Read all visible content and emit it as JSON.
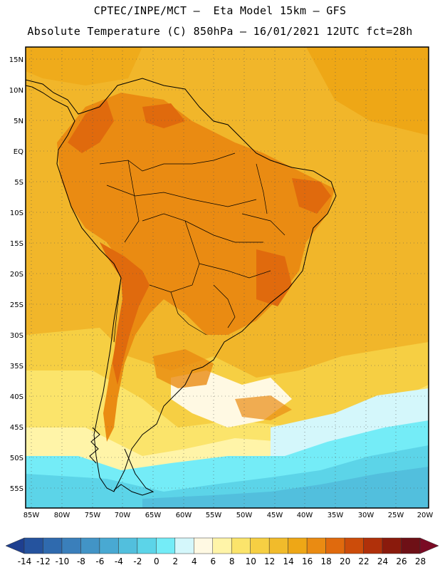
{
  "header": {
    "line1": "CPTEC/INPE/MCT –  Eta Model 15km – GFS",
    "line2": "Absolute Temperature (C) 850hPa – 16/01/2021 12UTC fct=28h"
  },
  "map": {
    "lat_labels": [
      "15N",
      "10N",
      "5N",
      "EQ",
      "5S",
      "10S",
      "15S",
      "20S",
      "25S",
      "30S",
      "35S",
      "40S",
      "45S",
      "50S",
      "55S"
    ],
    "lon_labels": [
      "85W",
      "80W",
      "75W",
      "70W",
      "65W",
      "60W",
      "55W",
      "50W",
      "45W",
      "40W",
      "35W",
      "30W",
      "25W",
      "20W"
    ]
  },
  "colorbar": {
    "labels": [
      "-14",
      "-12",
      "-10",
      "-8",
      "-6",
      "-4",
      "-2",
      "0",
      "2",
      "4",
      "6",
      "8",
      "10",
      "12",
      "14",
      "16",
      "18",
      "20",
      "22",
      "24",
      "26",
      "28"
    ],
    "colors": [
      "#1e3f8f",
      "#25539e",
      "#2f6aae",
      "#3a7fbb",
      "#4294c6",
      "#49a9d2",
      "#52bfdd",
      "#5cd4e8",
      "#74ecf7",
      "#d4f7fb",
      "#fff9e3",
      "#fff4a8",
      "#fbe46b",
      "#f6cf43",
      "#f1bb2b",
      "#eea716",
      "#ea8b12",
      "#e06a0d",
      "#cc4c0a",
      "#b0300a",
      "#8a1a0c",
      "#6e1016",
      "#7a0a24"
    ]
  }
}
